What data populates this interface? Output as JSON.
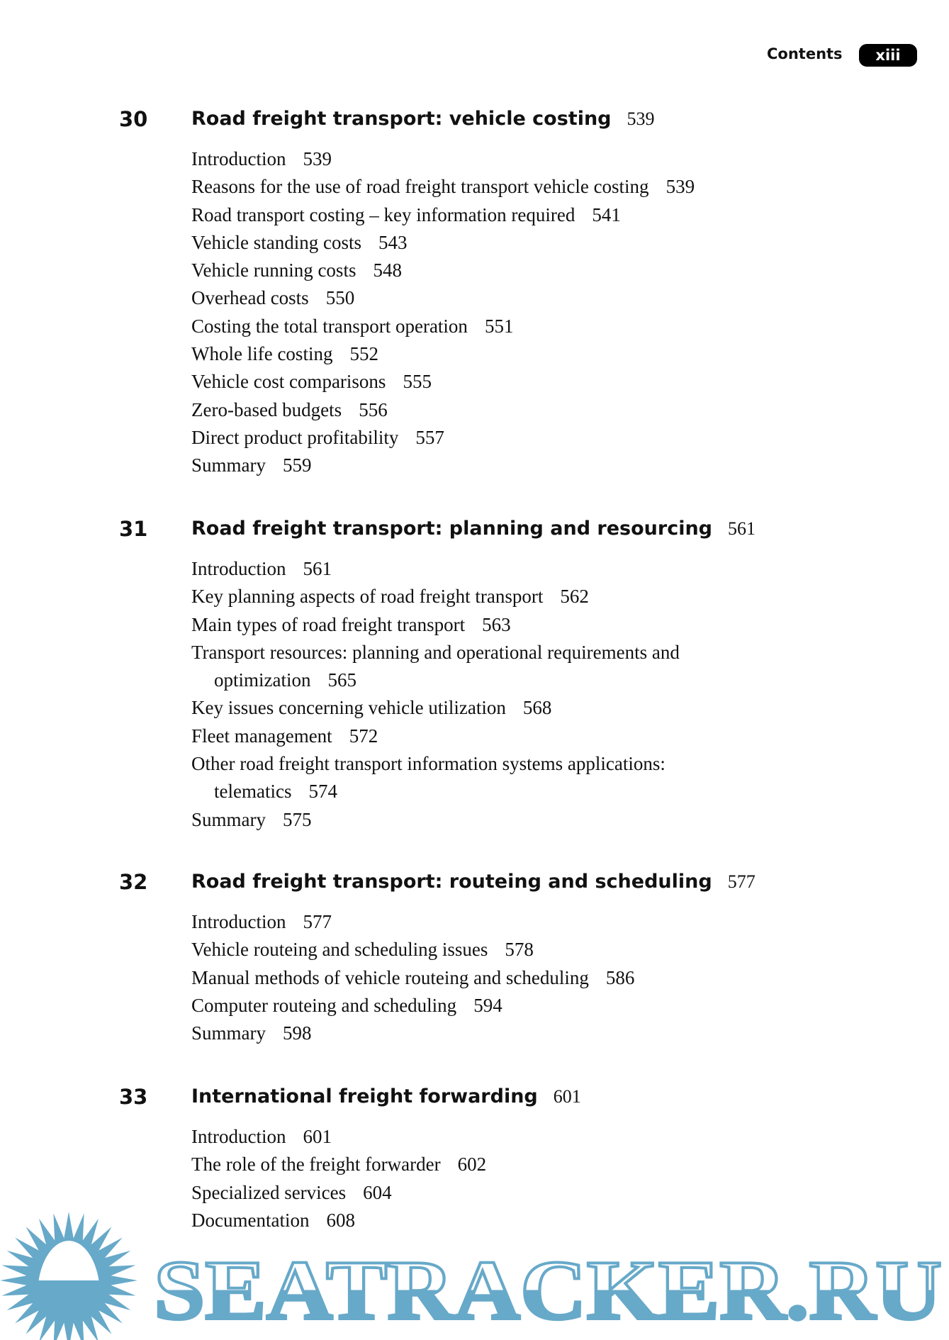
{
  "header": {
    "section": "Contents",
    "page": "xiii"
  },
  "chapters": [
    {
      "number": "30",
      "title": "Road freight transport: vehicle costing",
      "page": "539",
      "entries": [
        {
          "text": "Introduction",
          "page": "539"
        },
        {
          "text": "Reasons for the use of road freight transport vehicle costing",
          "page": "539"
        },
        {
          "text": "Road transport costing – key information required",
          "page": "541"
        },
        {
          "text": "Vehicle standing costs",
          "page": "543"
        },
        {
          "text": "Vehicle running costs",
          "page": "548"
        },
        {
          "text": "Overhead costs",
          "page": "550"
        },
        {
          "text": "Costing the total transport operation",
          "page": "551"
        },
        {
          "text": "Whole life costing",
          "page": "552"
        },
        {
          "text": "Vehicle cost comparisons",
          "page": "555"
        },
        {
          "text": "Zero-based budgets",
          "page": "556"
        },
        {
          "text": "Direct product profitability",
          "page": "557"
        },
        {
          "text": "Summary",
          "page": "559"
        }
      ]
    },
    {
      "number": "31",
      "title": "Road freight transport: planning and resourcing",
      "page": "561",
      "entries": [
        {
          "text": "Introduction",
          "page": "561"
        },
        {
          "text": "Key planning aspects of road freight transport",
          "page": "562"
        },
        {
          "text": "Main types of road freight transport",
          "page": "563"
        },
        {
          "text": "Transport resources: planning and operational requirements and optimization",
          "page": "565"
        },
        {
          "text": "Key issues concerning vehicle utilization",
          "page": "568"
        },
        {
          "text": "Fleet management",
          "page": "572"
        },
        {
          "text": "Other road freight transport information systems applications: telematics",
          "page": "574"
        },
        {
          "text": "Summary",
          "page": "575"
        }
      ]
    },
    {
      "number": "32",
      "title": "Road freight transport: routeing and scheduling",
      "page": "577",
      "entries": [
        {
          "text": "Introduction",
          "page": "577"
        },
        {
          "text": "Vehicle routeing and scheduling issues",
          "page": "578"
        },
        {
          "text": "Manual methods of vehicle routeing and scheduling",
          "page": "586"
        },
        {
          "text": "Computer routeing and scheduling",
          "page": "594"
        },
        {
          "text": "Summary",
          "page": "598"
        }
      ]
    },
    {
      "number": "33",
      "title": "International freight forwarding",
      "page": "601",
      "entries": [
        {
          "text": "Introduction",
          "page": "601"
        },
        {
          "text": "The role of the freight forwarder",
          "page": "602"
        },
        {
          "text": "Specialized services",
          "page": "604"
        },
        {
          "text": "Documentation",
          "page": "608"
        }
      ]
    }
  ],
  "watermark": {
    "text": "SEATRACKER.RU",
    "color": "#67a9c9"
  }
}
